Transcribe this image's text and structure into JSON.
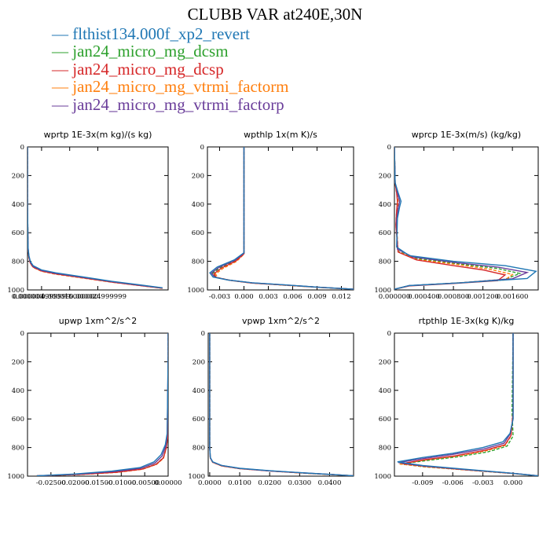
{
  "title": "CLUBB VAR at240E,30N",
  "legend": [
    {
      "label": "flthist134.000f_xp2_revert",
      "color": "#1f77b4"
    },
    {
      "label": "jan24_micro_mg_dcsm",
      "color": "#2ca02c"
    },
    {
      "label": "jan24_micro_mg_dcsp",
      "color": "#d62728"
    },
    {
      "label": "jan24_micro_mg_vtrmi_factorm",
      "color": "#ff7f0e"
    },
    {
      "label": "jan24_micro_mg_vtrmi_factorp",
      "color": "#6a3d9a"
    }
  ],
  "chart_data": [
    {
      "type": "line",
      "title": "wprtp  1E-3x(m kg)/(s kg)",
      "xlim": [
        0,
        5e-05
      ],
      "ylim": [
        1000,
        0
      ],
      "yticks": [
        "0",
        "200",
        "400",
        "600",
        "800",
        "1000"
      ],
      "xticks": [
        "0.000000",
        "0.000004999999",
        "0.000015000000",
        "0.000024999999"
      ],
      "series": [
        {
          "x": [
            0,
            0,
            2e-07,
            5e-07,
            1e-06,
            2e-06,
            5e-06,
            1e-05,
            2e-05,
            3e-05,
            4e-05,
            4.8e-05
          ],
          "y": [
            0,
            400,
            700,
            760,
            800,
            830,
            860,
            880,
            910,
            940,
            965,
            985
          ]
        },
        {
          "x": [
            0,
            0,
            2e-07,
            5e-07,
            1e-06,
            2e-06,
            5e-06,
            1e-05,
            2e-05,
            3e-05,
            4e-05,
            4.8e-05
          ],
          "y": [
            0,
            400,
            710,
            770,
            808,
            838,
            866,
            886,
            915,
            944,
            968,
            988
          ]
        },
        {
          "x": [
            0,
            0,
            2e-07,
            5e-07,
            1e-06,
            2e-06,
            5e-06,
            1e-05,
            2e-05,
            3e-05,
            4e-05,
            4.8e-05
          ],
          "y": [
            0,
            400,
            712,
            772,
            812,
            840,
            868,
            888,
            916,
            945,
            969,
            988
          ]
        },
        {
          "x": [
            0,
            0,
            2e-07,
            5e-07,
            1e-06,
            2e-06,
            5e-06,
            1e-05,
            2e-05,
            3e-05,
            4e-05,
            4.8e-05
          ],
          "y": [
            0,
            400,
            715,
            775,
            815,
            843,
            870,
            890,
            918,
            946,
            970,
            989
          ]
        },
        {
          "x": [
            0,
            0,
            2e-07,
            5e-07,
            1e-06,
            2e-06,
            5e-06,
            1e-05,
            2e-05,
            3e-05,
            4e-05,
            4.8e-05
          ],
          "y": [
            0,
            400,
            708,
            768,
            806,
            836,
            864,
            884,
            913,
            942,
            967,
            987
          ]
        }
      ]
    },
    {
      "type": "line",
      "title": "wpthlp  1x(m K)/s",
      "xlim": [
        -0.0045,
        0.0135
      ],
      "ylim": [
        1000,
        0
      ],
      "yticks": [
        "0",
        "200",
        "400",
        "600",
        "800",
        "1000"
      ],
      "xticks": [
        "-0.003",
        "0.000",
        "0.003",
        "0.006",
        "0.009",
        "0.012"
      ],
      "series": [
        {
          "x": [
            0,
            0,
            0,
            -0.0012,
            -0.0033,
            -0.0042,
            -0.0038,
            -0.002,
            0.001,
            0.005,
            0.009,
            0.0135
          ],
          "y": [
            0,
            500,
            740,
            790,
            840,
            880,
            910,
            930,
            950,
            965,
            980,
            995
          ]
        },
        {
          "x": [
            0,
            0,
            0,
            -0.001,
            -0.003,
            -0.0039,
            -0.0035,
            -0.0018,
            0.001,
            0.005,
            0.009,
            0.0135
          ],
          "y": [
            0,
            500,
            745,
            795,
            845,
            885,
            912,
            932,
            951,
            966,
            981,
            995
          ]
        },
        {
          "x": [
            0,
            0,
            0,
            -0.001,
            -0.0028,
            -0.0037,
            -0.0034,
            -0.0017,
            0.001,
            0.005,
            0.009,
            0.0135
          ],
          "y": [
            0,
            500,
            748,
            798,
            848,
            887,
            913,
            933,
            952,
            966,
            981,
            995
          ]
        },
        {
          "x": [
            0,
            0,
            0,
            -0.0009,
            -0.0026,
            -0.0035,
            -0.0032,
            -0.0016,
            0.001,
            0.005,
            0.009,
            0.0135
          ],
          "y": [
            0,
            500,
            750,
            800,
            850,
            889,
            914,
            934,
            952,
            967,
            982,
            995
          ]
        },
        {
          "x": [
            0,
            0,
            0,
            -0.0011,
            -0.0031,
            -0.004,
            -0.0036,
            -0.0019,
            0.001,
            0.005,
            0.009,
            0.0135
          ],
          "y": [
            0,
            500,
            742,
            792,
            842,
            882,
            911,
            931,
            950,
            965,
            980,
            995
          ]
        }
      ]
    },
    {
      "type": "line",
      "title": "wprcp  1E-3x(m/s) (kg/kg)",
      "xlim": [
        0,
        0.00195
      ],
      "ylim": [
        1000,
        0
      ],
      "yticks": [
        "0",
        "200",
        "400",
        "600",
        "800",
        "1000"
      ],
      "xticks": [
        "0.000000",
        "0.000400",
        "0.000800",
        "0.001200",
        "0.001600"
      ],
      "series": [
        {
          "x": [
            0,
            1e-05,
            5e-05,
            9e-05,
            7e-05,
            4e-05,
            3e-05,
            0.0002,
            0.0008,
            0.0015,
            0.00192,
            0.0018,
            0.0009,
            0.0002,
            0
          ],
          "y": [
            0,
            250,
            320,
            380,
            420,
            500,
            700,
            760,
            800,
            830,
            870,
            920,
            950,
            970,
            995
          ]
        },
        {
          "x": [
            0,
            1e-05,
            3e-05,
            5e-05,
            3e-05,
            2e-05,
            5e-05,
            0.0003,
            0.0009,
            0.0014,
            0.0017,
            0.0015,
            0.0009,
            0.0002,
            0
          ],
          "y": [
            0,
            250,
            320,
            380,
            450,
            550,
            730,
            780,
            820,
            850,
            885,
            925,
            950,
            970,
            995
          ]
        },
        {
          "x": [
            0,
            1e-05,
            3e-05,
            4e-05,
            3e-05,
            2e-05,
            5e-05,
            0.0003,
            0.0008,
            0.0012,
            0.0015,
            0.0014,
            0.0008,
            0.0002,
            0
          ],
          "y": [
            0,
            250,
            320,
            380,
            450,
            550,
            735,
            790,
            830,
            860,
            895,
            935,
            955,
            972,
            995
          ]
        },
        {
          "x": [
            0,
            1e-05,
            3e-05,
            5e-05,
            4e-05,
            3e-05,
            5e-05,
            0.0003,
            0.0009,
            0.0013,
            0.0016,
            0.0015,
            0.0008,
            0.0002,
            0
          ],
          "y": [
            0,
            250,
            320,
            380,
            450,
            550,
            733,
            786,
            826,
            856,
            892,
            930,
            953,
            971,
            995
          ]
        },
        {
          "x": [
            0,
            1e-05,
            4e-05,
            7e-05,
            5e-05,
            3e-05,
            4e-05,
            0.00025,
            0.00085,
            0.0014,
            0.0018,
            0.0016,
            0.0009,
            0.0002,
            0
          ],
          "y": [
            0,
            250,
            320,
            380,
            430,
            520,
            715,
            770,
            810,
            840,
            878,
            922,
            950,
            970,
            995
          ]
        }
      ]
    },
    {
      "type": "line",
      "title": "upwp  1xm^2/s^2",
      "xlim": [
        -0.03,
        0.0
      ],
      "ylim": [
        1000,
        0
      ],
      "yticks": [
        "0",
        "200",
        "400",
        "600",
        "800",
        "1000"
      ],
      "xticks": [
        "-0.02500",
        "-0.02000",
        "-0.01500",
        "-0.01000",
        "-0.00500",
        "0.00000"
      ],
      "series": [
        {
          "x": [
            0,
            0,
            -0.0002,
            -0.0006,
            -0.0015,
            -0.003,
            -0.006,
            -0.012,
            -0.02,
            -0.028
          ],
          "y": [
            0,
            150,
            700,
            780,
            850,
            900,
            940,
            965,
            985,
            998
          ]
        },
        {
          "x": [
            0,
            0,
            -0.0001,
            -0.0004,
            -0.001,
            -0.0025,
            -0.0055,
            -0.011,
            -0.019,
            -0.028
          ],
          "y": [
            0,
            150,
            720,
            800,
            870,
            915,
            950,
            972,
            988,
            998
          ]
        },
        {
          "x": [
            0,
            0,
            -0.0001,
            -0.0004,
            -0.001,
            -0.0025,
            -0.0055,
            -0.011,
            -0.019,
            -0.028
          ],
          "y": [
            0,
            150,
            722,
            802,
            872,
            916,
            951,
            973,
            988,
            998
          ]
        },
        {
          "x": [
            0,
            0,
            -0.0001,
            -0.0004,
            -0.001,
            -0.0025,
            -0.0055,
            -0.011,
            -0.019,
            -0.028
          ],
          "y": [
            0,
            150,
            725,
            805,
            875,
            918,
            952,
            974,
            989,
            998
          ]
        },
        {
          "x": [
            0,
            0,
            -0.0002,
            -0.0005,
            -0.0013,
            -0.0028,
            -0.0058,
            -0.0115,
            -0.0195,
            -0.028
          ],
          "y": [
            0,
            150,
            710,
            790,
            860,
            908,
            945,
            968,
            986,
            998
          ]
        }
      ]
    },
    {
      "type": "line",
      "title": "vpwp  1xm^2/s^2",
      "xlim": [
        -0.0005,
        0.048
      ],
      "ylim": [
        1000,
        0
      ],
      "yticks": [
        "0",
        "200",
        "400",
        "600",
        "800",
        "1000"
      ],
      "xticks": [
        "0.0000",
        "0.0100",
        "0.0200",
        "0.0300",
        "0.0400"
      ],
      "series": [
        {
          "x": [
            0,
            0,
            0.0002,
            0.001,
            0.004,
            0.01,
            0.02,
            0.032,
            0.042,
            0.048
          ],
          "y": [
            0,
            800,
            870,
            900,
            925,
            945,
            962,
            978,
            990,
            998
          ]
        },
        {
          "x": [
            0,
            0,
            0.0002,
            0.001,
            0.004,
            0.01,
            0.02,
            0.032,
            0.042,
            0.048
          ],
          "y": [
            0,
            800,
            872,
            902,
            927,
            947,
            963,
            979,
            990,
            998
          ]
        },
        {
          "x": [
            0,
            0,
            0.0002,
            0.001,
            0.004,
            0.01,
            0.02,
            0.032,
            0.042,
            0.048
          ],
          "y": [
            0,
            800,
            873,
            903,
            928,
            947,
            964,
            979,
            990,
            998
          ]
        },
        {
          "x": [
            0,
            0,
            0.0002,
            0.001,
            0.004,
            0.01,
            0.02,
            0.032,
            0.042,
            0.048
          ],
          "y": [
            0,
            800,
            874,
            904,
            929,
            948,
            964,
            980,
            991,
            998
          ]
        },
        {
          "x": [
            0,
            0,
            0.0002,
            0.001,
            0.004,
            0.01,
            0.02,
            0.032,
            0.042,
            0.048
          ],
          "y": [
            0,
            800,
            871,
            901,
            926,
            946,
            963,
            978,
            990,
            998
          ]
        }
      ]
    },
    {
      "type": "line",
      "title": "rtpthlp  1E-3x(kg K)/kg",
      "xlim": [
        -0.0118,
        0.0025
      ],
      "ylim": [
        1000,
        0
      ],
      "yticks": [
        "0",
        "200",
        "400",
        "600",
        "800",
        "1000"
      ],
      "xticks": [
        "-0.009",
        "-0.006",
        "-0.003",
        "0.000"
      ],
      "series": [
        {
          "x": [
            0,
            0,
            -0.0003,
            -0.001,
            -0.003,
            -0.006,
            -0.009,
            -0.0115,
            -0.009,
            -0.005,
            0,
            0.0025
          ],
          "y": [
            0,
            600,
            700,
            760,
            800,
            840,
            870,
            900,
            925,
            950,
            980,
            998
          ]
        },
        {
          "x": [
            0,
            -0.0001,
            0,
            -0.0006,
            -0.0025,
            -0.0055,
            -0.0085,
            -0.0112,
            -0.0088,
            -0.005,
            0,
            0.0025
          ],
          "y": [
            0,
            550,
            720,
            790,
            830,
            865,
            890,
            915,
            935,
            955,
            982,
            998
          ]
        },
        {
          "x": [
            0,
            0,
            -0.0002,
            -0.0008,
            -0.0028,
            -0.0058,
            -0.0088,
            -0.011,
            -0.0087,
            -0.005,
            0,
            0.0025
          ],
          "y": [
            0,
            550,
            715,
            780,
            820,
            858,
            885,
            912,
            932,
            954,
            981,
            998
          ]
        },
        {
          "x": [
            0,
            0,
            -0.0002,
            -0.0008,
            -0.0028,
            -0.0058,
            -0.0088,
            -0.0113,
            -0.0088,
            -0.005,
            0,
            0.0025
          ],
          "y": [
            0,
            550,
            718,
            785,
            825,
            862,
            888,
            915,
            934,
            955,
            982,
            998
          ]
        },
        {
          "x": [
            0,
            0,
            -0.0003,
            -0.0009,
            -0.0029,
            -0.006,
            -0.009,
            -0.0114,
            -0.009,
            -0.005,
            0,
            0.0025
          ],
          "y": [
            0,
            600,
            705,
            770,
            810,
            848,
            878,
            905,
            928,
            952,
            980,
            998
          ]
        }
      ]
    }
  ]
}
